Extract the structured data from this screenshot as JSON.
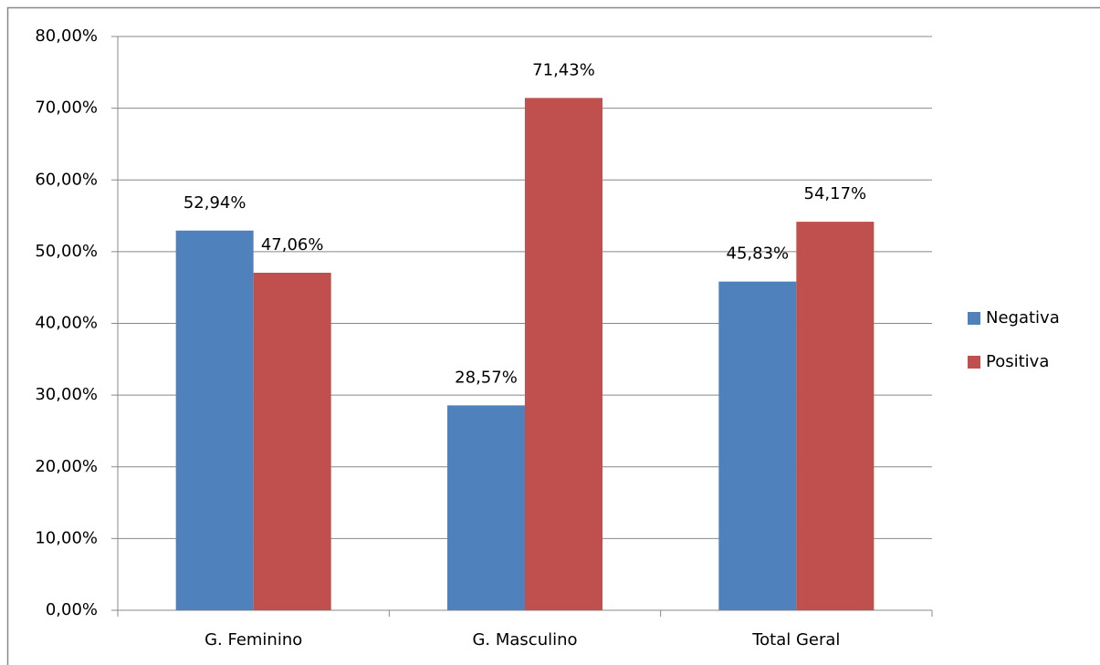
{
  "chart_data": {
    "type": "bar",
    "categories": [
      "G. Feminino",
      "G. Masculino",
      "Total Geral"
    ],
    "series": [
      {
        "name": "Negativa",
        "color": "#4f81bd",
        "values": [
          52.94,
          28.57,
          45.83
        ],
        "value_labels": [
          "52,94%",
          "28,57%",
          "45,83%"
        ]
      },
      {
        "name": "Positiva",
        "color": "#c0504d",
        "values": [
          47.06,
          71.43,
          54.17
        ],
        "value_labels": [
          "47,06%",
          "71,43%",
          "54,17%"
        ]
      }
    ],
    "ylim": [
      0,
      80
    ],
    "yticks": [
      {
        "value": 0,
        "label": "0,00%"
      },
      {
        "value": 10,
        "label": "10,00%"
      },
      {
        "value": 20,
        "label": "20,00%"
      },
      {
        "value": 30,
        "label": "30,00%"
      },
      {
        "value": 40,
        "label": "40,00%"
      },
      {
        "value": 50,
        "label": "50,00%"
      },
      {
        "value": 60,
        "label": "60,00%"
      },
      {
        "value": 70,
        "label": "70,00%"
      },
      {
        "value": 80,
        "label": "80,00%"
      }
    ],
    "grid": true,
    "legend": "right"
  }
}
